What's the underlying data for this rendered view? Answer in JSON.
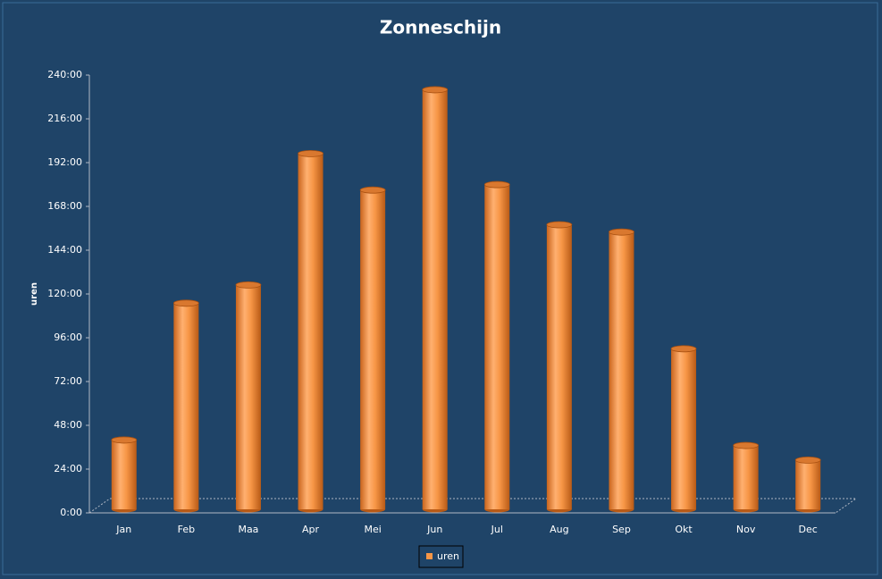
{
  "chart_data": {
    "type": "bar",
    "title": "Zonneschijn",
    "y_label": "uren",
    "categories": [
      "Jan",
      "Feb",
      "Maa",
      "Apr",
      "Mei",
      "Jun",
      "Jul",
      "Aug",
      "Sep",
      "Okt",
      "Nov",
      "Dec"
    ],
    "series": [
      {
        "name": "uren",
        "color": "#f79646",
        "values": [
          38,
          113,
          123,
          195,
          175,
          230,
          178,
          156,
          152,
          88,
          35,
          27
        ]
      }
    ],
    "ylim": [
      0,
      240
    ],
    "yticks": [
      {
        "value": 0,
        "label": "0:00"
      },
      {
        "value": 24,
        "label": "24:00"
      },
      {
        "value": 48,
        "label": "48:00"
      },
      {
        "value": 72,
        "label": "72:00"
      },
      {
        "value": 96,
        "label": "96:00"
      },
      {
        "value": 120,
        "label": "120:00"
      },
      {
        "value": 144,
        "label": "144:00"
      },
      {
        "value": 168,
        "label": "168:00"
      },
      {
        "value": 192,
        "label": "192:00"
      },
      {
        "value": 216,
        "label": "216:00"
      },
      {
        "value": 240,
        "label": "240:00"
      }
    ],
    "grid": false,
    "legend": "bottom"
  }
}
